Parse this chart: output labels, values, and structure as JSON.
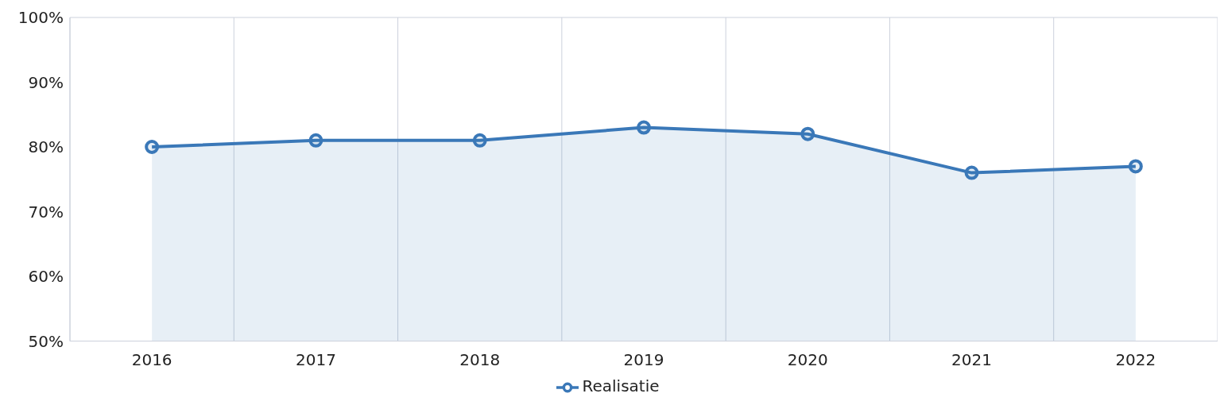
{
  "chart_data": {
    "type": "area",
    "categories": [
      "2016",
      "2017",
      "2018",
      "2019",
      "2020",
      "2021",
      "2022"
    ],
    "series": [
      {
        "name": "Realisatie",
        "color": "#3a78b8",
        "values": [
          80,
          81,
          81,
          83,
          82,
          76,
          77
        ]
      }
    ],
    "ylim": [
      50,
      100
    ],
    "yticks": [
      {
        "value": 50,
        "label": "50%"
      },
      {
        "value": 60,
        "label": "60%"
      },
      {
        "value": 70,
        "label": "70%"
      },
      {
        "value": 80,
        "label": "80%"
      },
      {
        "value": 90,
        "label": "90%"
      },
      {
        "value": 100,
        "label": "100%"
      }
    ],
    "grid": true,
    "legend": "bottom",
    "marker": "circle",
    "line_style": "solid"
  }
}
